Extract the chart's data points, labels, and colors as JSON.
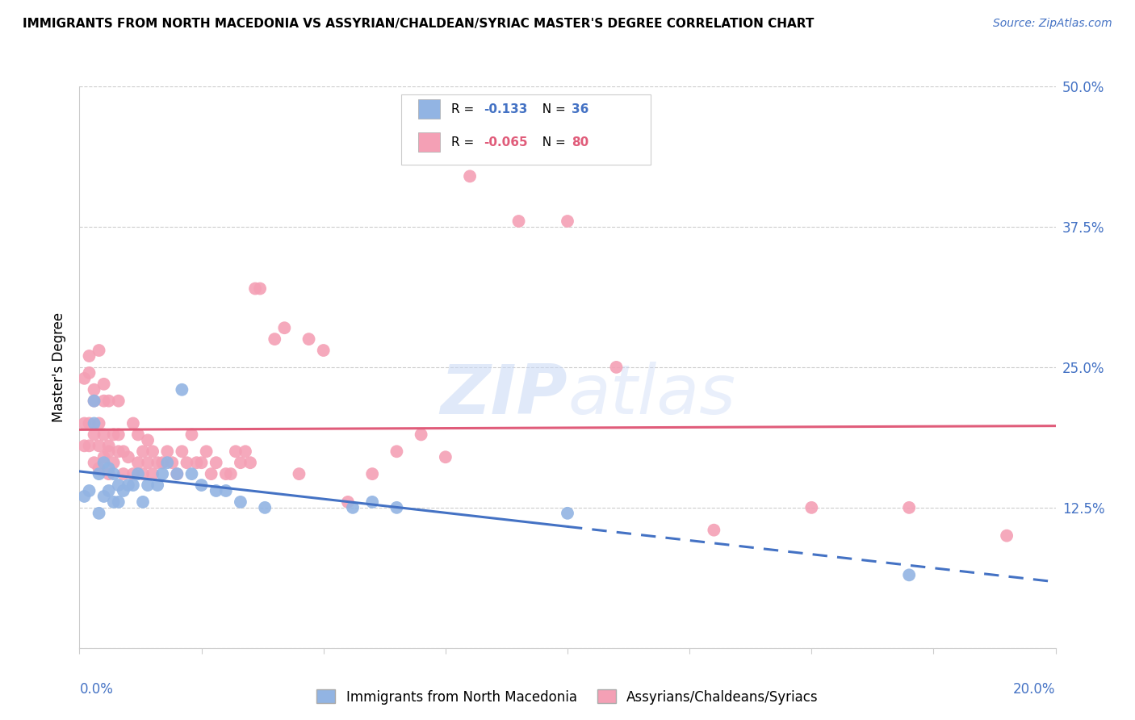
{
  "title": "IMMIGRANTS FROM NORTH MACEDONIA VS ASSYRIAN/CHALDEAN/SYRIAC MASTER'S DEGREE CORRELATION CHART",
  "source": "Source: ZipAtlas.com",
  "ylabel": "Master's Degree",
  "legend1_label": "Immigrants from North Macedonia",
  "legend2_label": "Assyrians/Chaldeans/Syriacs",
  "r1": "-0.133",
  "n1": "36",
  "r2": "-0.065",
  "n2": "80",
  "blue_color": "#92b4e3",
  "pink_color": "#f4a0b5",
  "blue_dark": "#4472c4",
  "pink_dark": "#e05c7a",
  "xlim": [
    0.0,
    0.2
  ],
  "ylim": [
    0.0,
    0.5
  ],
  "yticks": [
    0.0,
    0.125,
    0.25,
    0.375,
    0.5
  ],
  "ytick_labels": [
    "",
    "12.5%",
    "25.0%",
    "37.5%",
    "50.0%"
  ],
  "blue_scatter_x": [
    0.001,
    0.002,
    0.003,
    0.003,
    0.004,
    0.004,
    0.005,
    0.005,
    0.006,
    0.006,
    0.007,
    0.007,
    0.008,
    0.008,
    0.009,
    0.01,
    0.011,
    0.012,
    0.013,
    0.014,
    0.016,
    0.017,
    0.018,
    0.02,
    0.021,
    0.023,
    0.025,
    0.028,
    0.03,
    0.033,
    0.038,
    0.056,
    0.06,
    0.065,
    0.1,
    0.17
  ],
  "blue_scatter_y": [
    0.135,
    0.14,
    0.22,
    0.2,
    0.12,
    0.155,
    0.135,
    0.165,
    0.14,
    0.16,
    0.13,
    0.155,
    0.13,
    0.145,
    0.14,
    0.145,
    0.145,
    0.155,
    0.13,
    0.145,
    0.145,
    0.155,
    0.165,
    0.155,
    0.23,
    0.155,
    0.145,
    0.14,
    0.14,
    0.13,
    0.125,
    0.125,
    0.13,
    0.125,
    0.12,
    0.065
  ],
  "pink_scatter_x": [
    0.001,
    0.001,
    0.001,
    0.002,
    0.002,
    0.002,
    0.002,
    0.003,
    0.003,
    0.003,
    0.003,
    0.004,
    0.004,
    0.004,
    0.004,
    0.005,
    0.005,
    0.005,
    0.005,
    0.006,
    0.006,
    0.006,
    0.006,
    0.007,
    0.007,
    0.008,
    0.008,
    0.008,
    0.009,
    0.009,
    0.01,
    0.011,
    0.011,
    0.012,
    0.012,
    0.013,
    0.013,
    0.014,
    0.014,
    0.015,
    0.015,
    0.016,
    0.017,
    0.018,
    0.019,
    0.02,
    0.021,
    0.022,
    0.023,
    0.024,
    0.025,
    0.026,
    0.027,
    0.028,
    0.03,
    0.031,
    0.032,
    0.033,
    0.034,
    0.035,
    0.036,
    0.037,
    0.04,
    0.042,
    0.045,
    0.047,
    0.05,
    0.055,
    0.06,
    0.065,
    0.07,
    0.075,
    0.08,
    0.09,
    0.1,
    0.11,
    0.13,
    0.15,
    0.17,
    0.19
  ],
  "pink_scatter_y": [
    0.18,
    0.2,
    0.24,
    0.18,
    0.2,
    0.245,
    0.26,
    0.19,
    0.22,
    0.23,
    0.165,
    0.16,
    0.18,
    0.2,
    0.265,
    0.17,
    0.19,
    0.22,
    0.235,
    0.155,
    0.175,
    0.18,
    0.22,
    0.165,
    0.19,
    0.175,
    0.19,
    0.22,
    0.155,
    0.175,
    0.17,
    0.155,
    0.2,
    0.165,
    0.19,
    0.155,
    0.175,
    0.165,
    0.185,
    0.155,
    0.175,
    0.165,
    0.165,
    0.175,
    0.165,
    0.155,
    0.175,
    0.165,
    0.19,
    0.165,
    0.165,
    0.175,
    0.155,
    0.165,
    0.155,
    0.155,
    0.175,
    0.165,
    0.175,
    0.165,
    0.32,
    0.32,
    0.275,
    0.285,
    0.155,
    0.275,
    0.265,
    0.13,
    0.155,
    0.175,
    0.19,
    0.17,
    0.42,
    0.38,
    0.38,
    0.25,
    0.105,
    0.125,
    0.125,
    0.1
  ]
}
